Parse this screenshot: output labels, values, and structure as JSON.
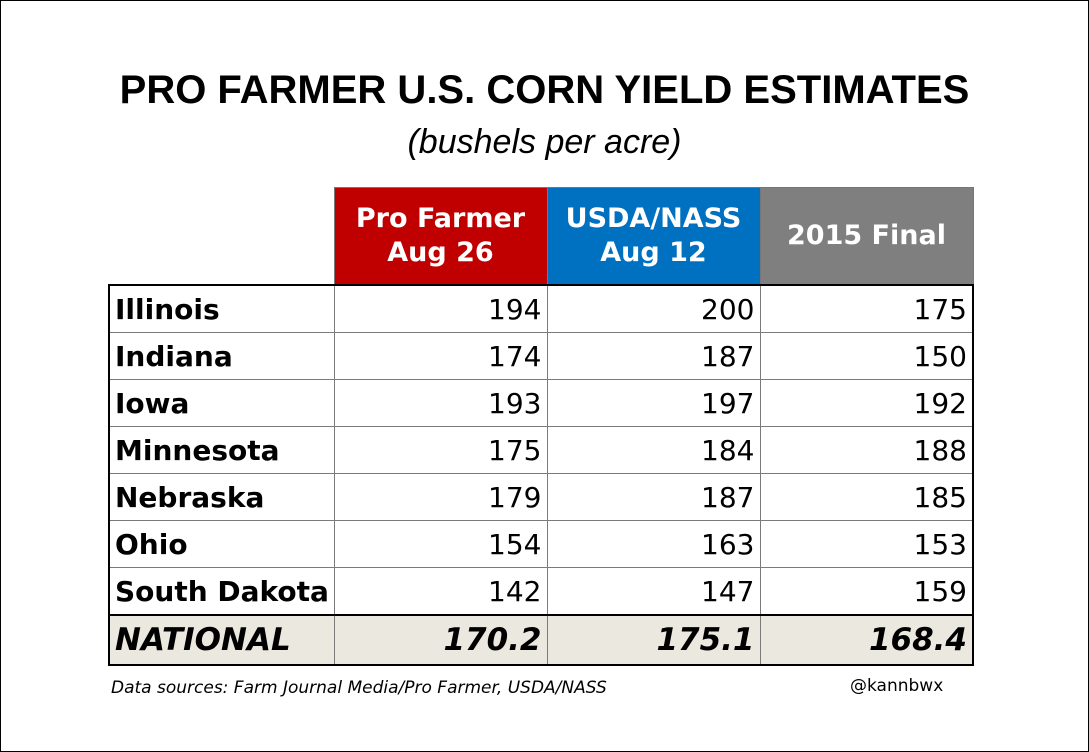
{
  "chart_data": {
    "type": "table",
    "title": "PRO FARMER U.S. CORN YIELD ESTIMATES",
    "subtitle": "(bushels per acre)",
    "columns": [
      {
        "line1": "Pro Farmer",
        "line2": "Aug 26",
        "color": "#c00000"
      },
      {
        "line1": "USDA/NASS",
        "line2": "Aug 12",
        "color": "#0070c0"
      },
      {
        "line1": "2015 Final",
        "line2": "",
        "color": "#7f7f7f"
      }
    ],
    "rows": [
      {
        "state": "Illinois",
        "values": [
          "194",
          "200",
          "175"
        ]
      },
      {
        "state": "Indiana",
        "values": [
          "174",
          "187",
          "150"
        ]
      },
      {
        "state": "Iowa",
        "values": [
          "193",
          "197",
          "192"
        ]
      },
      {
        "state": "Minnesota",
        "values": [
          "175",
          "184",
          "188"
        ]
      },
      {
        "state": "Nebraska",
        "values": [
          "179",
          "187",
          "185"
        ]
      },
      {
        "state": "Ohio",
        "values": [
          "154",
          "163",
          "153"
        ]
      },
      {
        "state": "South Dakota",
        "values": [
          "142",
          "147",
          "159"
        ]
      }
    ],
    "national": {
      "state": "NATIONAL",
      "values": [
        "170.2",
        "175.1",
        "168.4"
      ],
      "background": "#ebe8e0"
    }
  },
  "footer": {
    "sources": "Data sources: Farm Journal Media/Pro Farmer, USDA/NASS",
    "handle": "@kannbwx"
  }
}
